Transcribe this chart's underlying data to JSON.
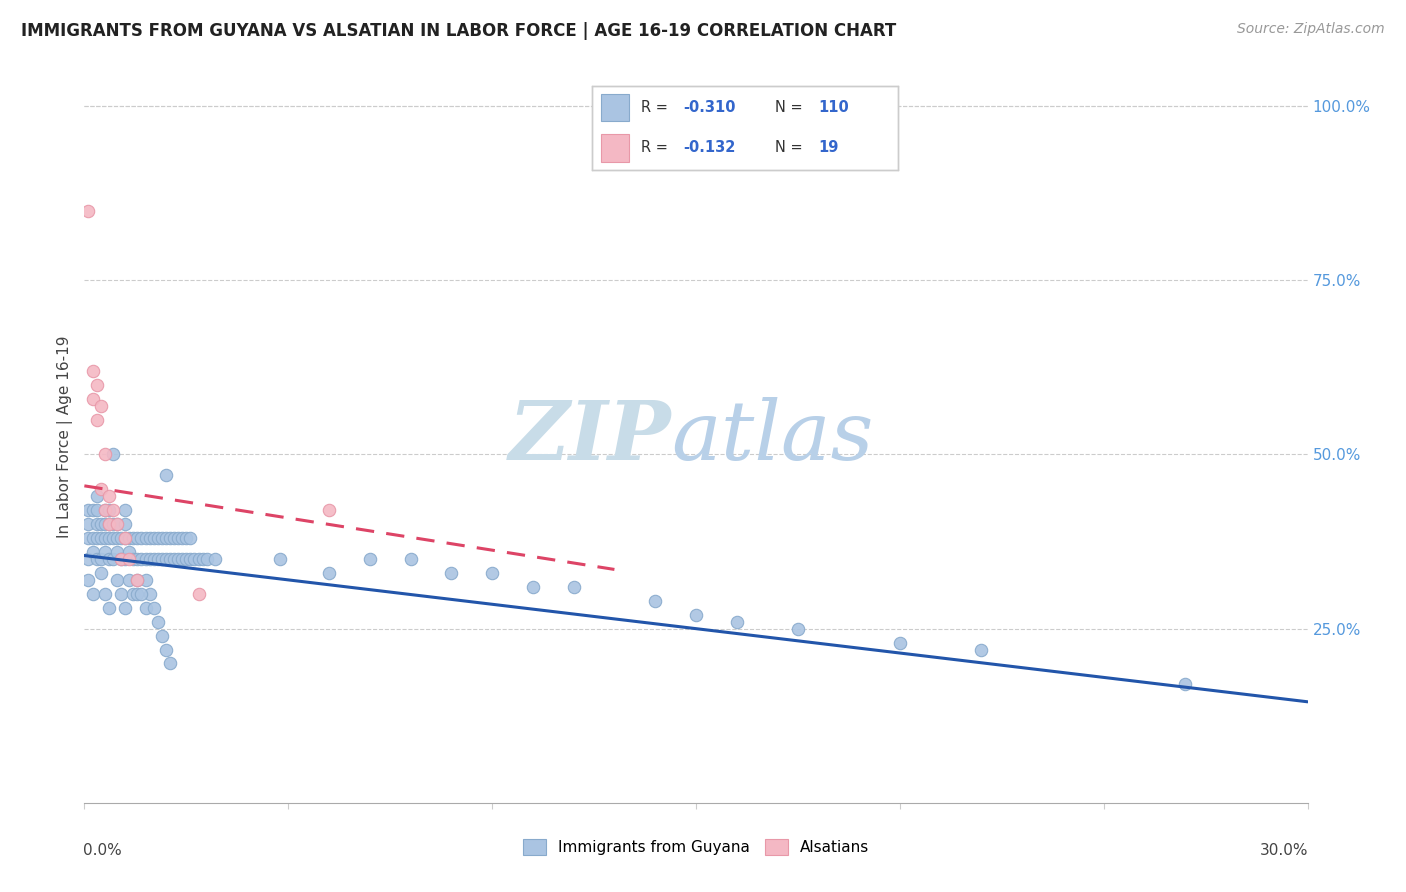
{
  "title": "IMMIGRANTS FROM GUYANA VS ALSATIAN IN LABOR FORCE | AGE 16-19 CORRELATION CHART",
  "source": "Source: ZipAtlas.com",
  "ylabel": "In Labor Force | Age 16-19",
  "right_yticks": [
    0.25,
    0.5,
    0.75,
    1.0
  ],
  "right_yticklabels": [
    "25.0%",
    "50.0%",
    "75.0%",
    "100.0%"
  ],
  "xlim": [
    0.0,
    0.3
  ],
  "ylim": [
    0.0,
    1.05
  ],
  "blue_color": "#aac4e2",
  "blue_edge": "#88aacc",
  "pink_color": "#f4b8c4",
  "pink_edge": "#e898a8",
  "blue_line_color": "#2255aa",
  "pink_line_color": "#dd4466",
  "watermark_zip": "ZIP",
  "watermark_atlas": "atlas",
  "watermark_color_zip": "#c5d8ee",
  "watermark_color_atlas": "#bbd4f0",
  "legend_label_blue": "Immigrants from Guyana",
  "legend_label_pink": "Alsatians",
  "blue_line_x0": 0.0,
  "blue_line_y0": 0.355,
  "blue_line_x1": 0.3,
  "blue_line_y1": 0.145,
  "pink_line_x0": 0.0,
  "pink_line_y0": 0.455,
  "pink_line_x1": 0.13,
  "pink_line_y1": 0.335,
  "blue_scatter_x": [
    0.001,
    0.001,
    0.001,
    0.001,
    0.001,
    0.002,
    0.002,
    0.002,
    0.002,
    0.003,
    0.003,
    0.003,
    0.003,
    0.003,
    0.004,
    0.004,
    0.004,
    0.004,
    0.005,
    0.005,
    0.005,
    0.005,
    0.005,
    0.006,
    0.006,
    0.006,
    0.006,
    0.006,
    0.007,
    0.007,
    0.007,
    0.007,
    0.008,
    0.008,
    0.008,
    0.008,
    0.009,
    0.009,
    0.009,
    0.01,
    0.01,
    0.01,
    0.01,
    0.01,
    0.011,
    0.011,
    0.011,
    0.012,
    0.012,
    0.012,
    0.013,
    0.013,
    0.013,
    0.014,
    0.014,
    0.015,
    0.015,
    0.015,
    0.016,
    0.016,
    0.017,
    0.017,
    0.018,
    0.018,
    0.019,
    0.019,
    0.02,
    0.02,
    0.02,
    0.021,
    0.021,
    0.022,
    0.022,
    0.023,
    0.023,
    0.024,
    0.024,
    0.025,
    0.025,
    0.026,
    0.026,
    0.027,
    0.028,
    0.029,
    0.03,
    0.032,
    0.048,
    0.06,
    0.07,
    0.08,
    0.09,
    0.1,
    0.11,
    0.12,
    0.14,
    0.15,
    0.16,
    0.175,
    0.2,
    0.22,
    0.015,
    0.016,
    0.013,
    0.014,
    0.017,
    0.018,
    0.019,
    0.02,
    0.021,
    0.27
  ],
  "blue_scatter_y": [
    0.35,
    0.38,
    0.4,
    0.42,
    0.32,
    0.36,
    0.38,
    0.42,
    0.3,
    0.35,
    0.38,
    0.4,
    0.42,
    0.44,
    0.35,
    0.38,
    0.4,
    0.33,
    0.36,
    0.38,
    0.4,
    0.42,
    0.3,
    0.35,
    0.38,
    0.4,
    0.42,
    0.28,
    0.35,
    0.38,
    0.4,
    0.5,
    0.36,
    0.38,
    0.4,
    0.32,
    0.35,
    0.38,
    0.3,
    0.35,
    0.38,
    0.4,
    0.42,
    0.28,
    0.36,
    0.38,
    0.32,
    0.35,
    0.38,
    0.3,
    0.35,
    0.38,
    0.3,
    0.35,
    0.38,
    0.35,
    0.38,
    0.32,
    0.35,
    0.38,
    0.35,
    0.38,
    0.35,
    0.38,
    0.35,
    0.38,
    0.35,
    0.38,
    0.47,
    0.35,
    0.38,
    0.35,
    0.38,
    0.35,
    0.38,
    0.35,
    0.38,
    0.35,
    0.38,
    0.35,
    0.38,
    0.35,
    0.35,
    0.35,
    0.35,
    0.35,
    0.35,
    0.33,
    0.35,
    0.35,
    0.33,
    0.33,
    0.31,
    0.31,
    0.29,
    0.27,
    0.26,
    0.25,
    0.23,
    0.22,
    0.28,
    0.3,
    0.32,
    0.3,
    0.28,
    0.26,
    0.24,
    0.22,
    0.2,
    0.17
  ],
  "pink_scatter_x": [
    0.001,
    0.002,
    0.002,
    0.003,
    0.003,
    0.004,
    0.004,
    0.005,
    0.005,
    0.006,
    0.006,
    0.007,
    0.008,
    0.009,
    0.01,
    0.011,
    0.013,
    0.028,
    0.06
  ],
  "pink_scatter_y": [
    0.85,
    0.62,
    0.58,
    0.6,
    0.55,
    0.57,
    0.45,
    0.42,
    0.5,
    0.4,
    0.44,
    0.42,
    0.4,
    0.35,
    0.38,
    0.35,
    0.32,
    0.3,
    0.42
  ]
}
